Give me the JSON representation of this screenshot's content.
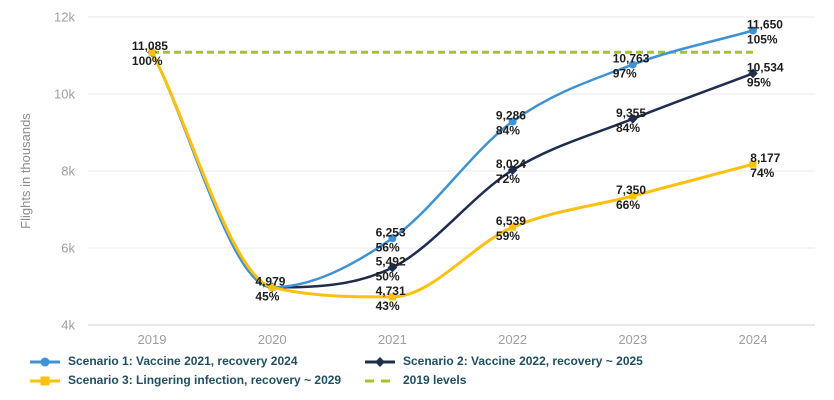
{
  "colors": {
    "background": "#FFFFFF",
    "grid": "#E8E8E8",
    "axis_line": "#D2D2D2",
    "axis_text": "#9E9E9E",
    "ylabel_text": "#8C8C8C",
    "point_label": "#1D1D1B",
    "legend_text": "#1F4F60"
  },
  "chart_data": {
    "type": "line",
    "ylabel": "Flights in thousands",
    "ylim": [
      4000,
      12000
    ],
    "grid": true,
    "legend_position": "bottom",
    "yticks": [
      {
        "label": "12k",
        "value": 12000
      },
      {
        "label": "10k",
        "value": 10000
      },
      {
        "label": "8k",
        "value": 8000
      },
      {
        "label": "6k",
        "value": 6000
      },
      {
        "label": "4k",
        "value": 4000
      }
    ],
    "categories": [
      "2019",
      "2020",
      "2021",
      "2022",
      "2023",
      "2024"
    ],
    "reference_line": {
      "name": "2019 levels",
      "value": 11085,
      "color": "#A0C62B",
      "dash": true
    },
    "series": [
      {
        "name": "Scenario 1: Vaccine 2021, recovery 2024",
        "color": "#3F92D4",
        "marker": "circle",
        "values": [
          11085,
          4979,
          6253,
          9286,
          10763,
          11650
        ],
        "point_labels": [
          "11,085",
          "4,979",
          "6,253",
          "9,286",
          "10,763",
          "11,650"
        ],
        "point_percents": [
          "100%",
          "45%",
          "56%",
          "84%",
          "97%",
          "105%"
        ]
      },
      {
        "name": "Scenario 2: Vaccine 2022, recovery ~ 2025",
        "color": "#1F2D4E",
        "marker": "diamond",
        "values": [
          11085,
          4979,
          5492,
          8024,
          9355,
          10534
        ],
        "point_labels": [
          null,
          null,
          "5,492",
          "8,024",
          "9,355",
          "10,534"
        ],
        "point_percents": [
          null,
          null,
          "50%",
          "72%",
          "84%",
          "95%"
        ]
      },
      {
        "name": "Scenario 3: Lingering infection, recovery ~ 2029",
        "color": "#FEC00F",
        "marker": "square",
        "values": [
          11085,
          4979,
          4731,
          6539,
          7350,
          8177
        ],
        "point_labels": [
          null,
          null,
          "4,731",
          "6,539",
          "7,350",
          "8,177"
        ],
        "point_percents": [
          null,
          null,
          "43%",
          "59%",
          "66%",
          "74%"
        ]
      }
    ]
  }
}
